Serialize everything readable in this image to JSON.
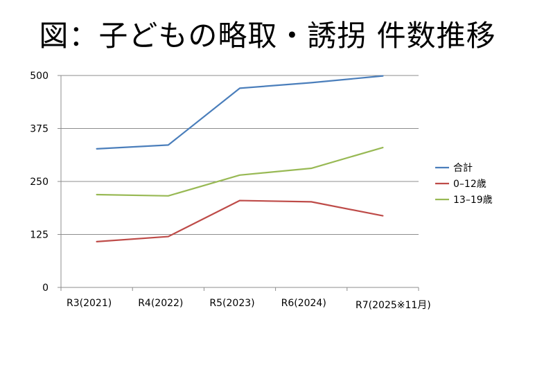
{
  "chart_data": {
    "type": "line",
    "title": "図：子どもの略取・誘拐 件数推移",
    "categories": [
      "R3(2021)",
      "R4(2022)",
      "R5(2023)",
      "R6(2024)",
      "R7(2025※11月)"
    ],
    "series": [
      {
        "name": "合計",
        "color": "#4a7ebb",
        "values": [
          327,
          336,
          470,
          483,
          499
        ]
      },
      {
        "name": "0–12歳",
        "color": "#be4b48",
        "values": [
          108,
          120,
          205,
          202,
          169
        ]
      },
      {
        "name": "13–19歳",
        "color": "#98b954",
        "values": [
          219,
          216,
          265,
          281,
          330
        ]
      }
    ],
    "ylim": [
      0,
      500
    ],
    "yticks": [
      0,
      125,
      250,
      375,
      500
    ],
    "grid": true,
    "legend_position": "right"
  }
}
